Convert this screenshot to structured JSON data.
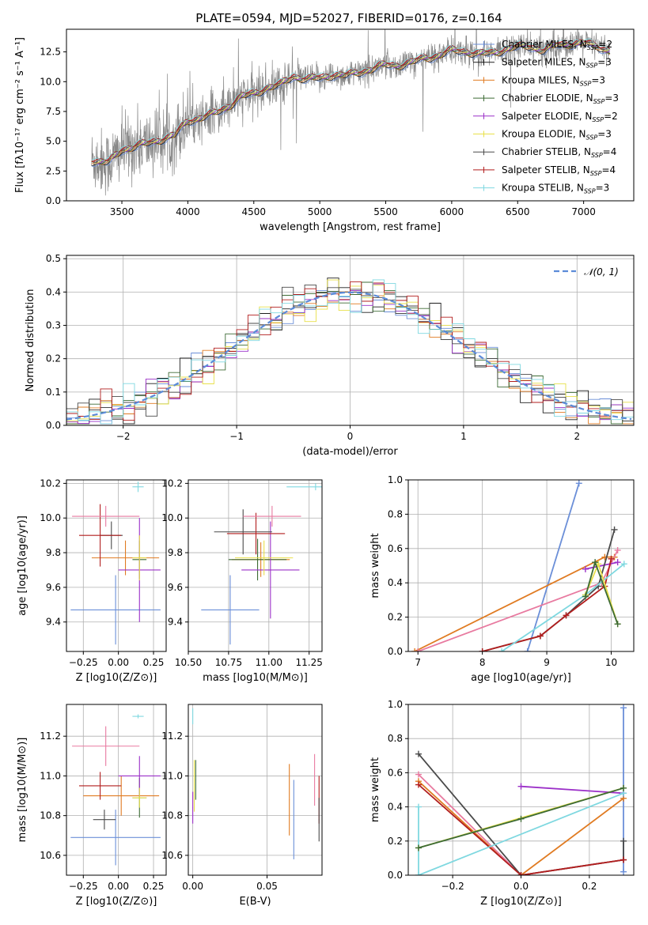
{
  "chart_data": [
    {
      "id": "spectrum",
      "type": "line",
      "title": "PLATE=0594, MJD=52027, FIBERID=0176, z=0.164",
      "xlabel": "wavelength [Angstrom, rest frame]",
      "ylabel": "Flux [fλ10⁻¹⁷ erg cm⁻² s⁻¹ A⁻¹]",
      "xlim": [
        3080,
        7380
      ],
      "ylim": [
        0,
        14.4
      ],
      "xticks": [
        3500,
        4000,
        4500,
        5000,
        5500,
        6000,
        6500,
        7000
      ],
      "yticks": [
        0.0,
        2.5,
        5.0,
        7.5,
        10.0,
        12.5
      ],
      "data_anchor": {
        "x": [
          3270,
          3400,
          3500,
          3600,
          3700,
          3800,
          3900,
          4000,
          4100,
          4200,
          4300,
          4400,
          4500,
          4600,
          4700,
          4800,
          4900,
          5000,
          5100,
          5200,
          5300,
          5400,
          5500,
          5600,
          5700,
          5800,
          5900,
          6000,
          6100,
          6200,
          6300,
          6400,
          6500,
          6600,
          6700,
          6800,
          6900,
          7000,
          7100,
          7200
        ],
        "y": [
          3.4,
          3.2,
          4.3,
          4.6,
          4.8,
          5.2,
          5.5,
          6.7,
          7.0,
          7.3,
          7.9,
          8.7,
          9.0,
          9.5,
          9.7,
          10.5,
          10.2,
          10.3,
          10.6,
          10.5,
          10.8,
          11.1,
          11.4,
          11.4,
          11.6,
          12.0,
          12.2,
          12.6,
          12.6,
          12.3,
          12.4,
          12.7,
          12.9,
          13.0,
          12.6,
          13.1,
          13.2,
          13.2,
          13.0,
          12.6
        ]
      },
      "series": [
        {
          "name": "Chabrier MILES, N_SSP=2",
          "color": "#6b8fd8"
        },
        {
          "name": "Salpeter MILES, N_SSP=3",
          "color": "#1e1e1e"
        },
        {
          "name": "Kroupa MILES, N_SSP=3",
          "color": "#e07b22"
        },
        {
          "name": "Chabrier ELODIE, N_SSP=3",
          "color": "#3d6b35"
        },
        {
          "name": "Salpeter ELODIE, N_SSP=2",
          "color": "#9b30c8"
        },
        {
          "name": "Kroupa ELODIE, N_SSP=3",
          "color": "#e8e04a"
        },
        {
          "name": "Chabrier STELIB, N_SSP=4",
          "color": "#4a4a4a"
        },
        {
          "name": "Salpeter STELIB, N_SSP=4",
          "color": "#b21e1e"
        },
        {
          "name": "Kroupa STELIB, N_SSP=3",
          "color": "#7fd8e0"
        }
      ]
    },
    {
      "id": "residuals",
      "type": "line",
      "xlabel": "(data-model)/error",
      "ylabel": "Normed distribution",
      "xlim": [
        -2.5,
        2.5
      ],
      "ylim": [
        0,
        0.51
      ],
      "xticks": [
        -2,
        -1,
        0,
        1,
        2
      ],
      "yticks": [
        0.0,
        0.1,
        0.2,
        0.3,
        0.4,
        0.5
      ],
      "legend_label": "𝒩(0, 1)",
      "bin_edges_start": -2.5,
      "bin_width": 0.1
    },
    {
      "id": "age_vs_Z",
      "type": "scatter",
      "xlabel": "Z [log10(Z/Z⊙)]",
      "ylabel": "age [log10(age/yr)]",
      "xlim": [
        -0.37,
        0.34
      ],
      "ylim": [
        9.23,
        10.22
      ],
      "xticks": [
        -0.25,
        0.0,
        0.25
      ],
      "yticks": [
        9.4,
        9.6,
        9.8,
        10.0,
        10.2
      ],
      "points": [
        {
          "x": -0.02,
          "y": 9.47,
          "xerr": 0.32,
          "yerr": 0.0,
          "color": "#6b8fd8"
        },
        {
          "x": 0.05,
          "y": 9.77,
          "xerr": 0.24,
          "yerr": 0.0,
          "color": "#e07b22"
        },
        {
          "x": 0.15,
          "y": 9.76,
          "xerr": 0.05,
          "yerr": 0.0,
          "color": "#3d6b35"
        },
        {
          "x": 0.15,
          "y": 9.7,
          "xerr": 0.15,
          "yerr": 0.0,
          "color": "#9b30c8"
        },
        {
          "x": 0.15,
          "y": 9.77,
          "xerr": 0.05,
          "yerr": 0.0,
          "color": "#e8e04a"
        },
        {
          "x": -0.05,
          "y": 9.9,
          "xerr": 0.08,
          "yerr": 0.0,
          "color": "#4a4a4a"
        },
        {
          "x": -0.13,
          "y": 9.9,
          "xerr": 0.15,
          "yerr": 0.0,
          "color": "#b21e1e"
        },
        {
          "x": -0.09,
          "y": 10.01,
          "xerr": 0.24,
          "yerr": 0.0,
          "color": "#e87aa0"
        },
        {
          "x": 0.14,
          "y": 10.18,
          "xerr": 0.04,
          "yerr": 0.0,
          "color": "#7fd8e0"
        }
      ]
    },
    {
      "id": "age_vs_mass",
      "type": "scatter",
      "xlabel": "mass [log10(M/M⊙)]",
      "ylabel": "",
      "xlim": [
        10.5,
        11.33
      ],
      "ylim": [
        9.23,
        10.22
      ],
      "xticks": [
        10.5,
        10.75,
        11.0,
        11.25
      ],
      "yticks": [
        9.4,
        9.6,
        9.8,
        10.0,
        10.2
      ],
      "points": [
        {
          "x": 10.76,
          "y": 9.47,
          "color": "#6b8fd8"
        },
        {
          "x": 10.95,
          "y": 9.76,
          "color": "#e07b22"
        },
        {
          "x": 10.93,
          "y": 9.76,
          "color": "#3d6b35"
        },
        {
          "x": 11.01,
          "y": 9.7,
          "color": "#9b30c8"
        },
        {
          "x": 10.97,
          "y": 9.77,
          "color": "#e8e04a"
        },
        {
          "x": 10.84,
          "y": 9.92,
          "color": "#4a4a4a"
        },
        {
          "x": 10.92,
          "y": 9.91,
          "color": "#b21e1e"
        },
        {
          "x": 11.02,
          "y": 10.01,
          "color": "#e87aa0"
        },
        {
          "x": 11.29,
          "y": 10.18,
          "color": "#7fd8e0"
        }
      ]
    },
    {
      "id": "weight_vs_age",
      "type": "line",
      "xlabel": "age [log10(age/yr)]",
      "ylabel": "mass weight",
      "xlim": [
        6.85,
        10.35
      ],
      "ylim": [
        0.0,
        1.0
      ],
      "xticks": [
        7,
        8,
        9,
        10
      ],
      "yticks": [
        0.0,
        0.2,
        0.4,
        0.6,
        0.8,
        1.0
      ],
      "series": [
        {
          "color": "#6b8fd8",
          "x": [
            8.7,
            9.5
          ],
          "y": [
            0.0,
            0.98
          ]
        },
        {
          "color": "#e07b22",
          "x": [
            6.95,
            9.9,
            10.05
          ],
          "y": [
            0.0,
            0.55,
            0.55
          ]
        },
        {
          "color": "#e87aa0",
          "x": [
            7.0,
            9.85,
            10.1
          ],
          "y": [
            0.0,
            0.4,
            0.59
          ]
        },
        {
          "color": "#9b30c8",
          "x": [
            9.6,
            10.1
          ],
          "y": [
            0.48,
            0.52
          ]
        },
        {
          "color": "#4a4a4a",
          "x": [
            8.0,
            8.9,
            9.3,
            9.8,
            10.05
          ],
          "y": [
            0.0,
            0.09,
            0.21,
            0.38,
            0.71
          ]
        },
        {
          "color": "#b21e1e",
          "x": [
            8.0,
            8.9,
            9.3,
            9.9,
            10.0
          ],
          "y": [
            0.0,
            0.09,
            0.21,
            0.38,
            0.54
          ]
        },
        {
          "color": "#7fd8e0",
          "x": [
            8.3,
            9.6,
            10.2
          ],
          "y": [
            0.0,
            0.33,
            0.51
          ]
        },
        {
          "color": "#e8e04a",
          "x": [
            9.6,
            9.8,
            10.1
          ],
          "y": [
            0.33,
            0.51,
            0.16
          ]
        },
        {
          "color": "#3d6b35",
          "x": [
            9.6,
            9.75,
            10.1
          ],
          "y": [
            0.32,
            0.52,
            0.16
          ]
        }
      ]
    },
    {
      "id": "mass_vs_Z",
      "type": "scatter",
      "xlabel": "Z [log10(Z/Z⊙)]",
      "ylabel": "mass [log10(M/M⊙)]",
      "xlim": [
        -0.37,
        0.34
      ],
      "ylim": [
        10.5,
        11.36
      ],
      "xticks": [
        -0.25,
        0.0,
        0.25
      ],
      "yticks": [
        10.6,
        10.8,
        11.0,
        11.2
      ],
      "points": [
        {
          "x": -0.02,
          "y": 10.69,
          "xerr": 0.32,
          "color": "#6b8fd8"
        },
        {
          "x": 0.02,
          "y": 10.9,
          "xerr": 0.27,
          "color": "#e07b22"
        },
        {
          "x": 0.15,
          "y": 10.89,
          "xerr": 0.05,
          "color": "#3d6b35"
        },
        {
          "x": 0.15,
          "y": 11.0,
          "xerr": 0.15,
          "color": "#9b30c8"
        },
        {
          "x": 0.15,
          "y": 10.89,
          "xerr": 0.05,
          "color": "#e8e04a"
        },
        {
          "x": -0.1,
          "y": 10.78,
          "xerr": 0.08,
          "color": "#4a4a4a"
        },
        {
          "x": -0.13,
          "y": 10.95,
          "xerr": 0.15,
          "color": "#b21e1e"
        },
        {
          "x": -0.09,
          "y": 11.15,
          "xerr": 0.24,
          "color": "#e87aa0"
        },
        {
          "x": 0.14,
          "y": 11.3,
          "xerr": 0.04,
          "color": "#7fd8e0"
        }
      ]
    },
    {
      "id": "mass_vs_EBV",
      "type": "scatter",
      "xlabel": "E(B-V)",
      "ylabel": "",
      "xlim": [
        -0.003,
        0.087
      ],
      "ylim": [
        10.5,
        11.36
      ],
      "xticks": [
        0.0,
        0.05
      ],
      "yticks": [
        10.6,
        10.8,
        11.0,
        11.2
      ],
      "points": [
        {
          "x": 0.0,
          "y": 11.3,
          "color": "#7fd8e0"
        },
        {
          "x": 0.001,
          "y": 10.95,
          "color": "#e8e04a"
        },
        {
          "x": 0.002,
          "y": 10.98,
          "color": "#3d6b35"
        },
        {
          "x": 0.0,
          "y": 10.84,
          "color": "#9b30c8"
        },
        {
          "x": 0.065,
          "y": 10.88,
          "color": "#e07b22"
        },
        {
          "x": 0.068,
          "y": 10.78,
          "color": "#6b8fd8"
        },
        {
          "x": 0.082,
          "y": 10.98,
          "color": "#e87aa0"
        },
        {
          "x": 0.085,
          "y": 10.88,
          "color": "#b21e1e"
        },
        {
          "x": 0.085,
          "y": 10.78,
          "color": "#4a4a4a"
        }
      ]
    },
    {
      "id": "weight_vs_Z",
      "type": "line",
      "xlabel": "Z [log10(Z/Z⊙)]",
      "ylabel": "mass weight",
      "xlim": [
        -0.33,
        0.33
      ],
      "ylim": [
        0.0,
        1.0
      ],
      "xticks": [
        -0.2,
        0.0,
        0.2
      ],
      "yticks": [
        0.0,
        0.2,
        0.4,
        0.6,
        0.8,
        1.0
      ],
      "series": [
        {
          "color": "#6b8fd8",
          "x": [
            0.3,
            0.3
          ],
          "y": [
            0.02,
            0.98
          ]
        },
        {
          "color": "#e07b22",
          "x": [
            -0.3,
            0.0,
            0.3
          ],
          "y": [
            0.55,
            0.0,
            0.45
          ]
        },
        {
          "color": "#e87aa0",
          "x": [
            -0.3,
            0.0,
            0.3
          ],
          "y": [
            0.59,
            0.0,
            0.09
          ]
        },
        {
          "color": "#9b30c8",
          "x": [
            0.0,
            0.3
          ],
          "y": [
            0.52,
            0.48
          ]
        },
        {
          "color": "#4a4a4a",
          "x": [
            -0.3,
            0.0,
            0.3,
            0.3
          ],
          "y": [
            0.71,
            0.0,
            0.09,
            0.2
          ]
        },
        {
          "color": "#b21e1e",
          "x": [
            -0.3,
            0.0,
            0.3
          ],
          "y": [
            0.53,
            0.0,
            0.09
          ]
        },
        {
          "color": "#7fd8e0",
          "x": [
            -0.3,
            -0.3,
            0.3
          ],
          "y": [
            0.4,
            0.0,
            0.48
          ]
        },
        {
          "color": "#e8e04a",
          "x": [
            -0.3,
            0.3
          ],
          "y": [
            0.16,
            0.51
          ]
        },
        {
          "color": "#3d6b35",
          "x": [
            -0.3,
            0.0,
            0.3
          ],
          "y": [
            0.16,
            0.33,
            0.51
          ]
        }
      ]
    }
  ]
}
